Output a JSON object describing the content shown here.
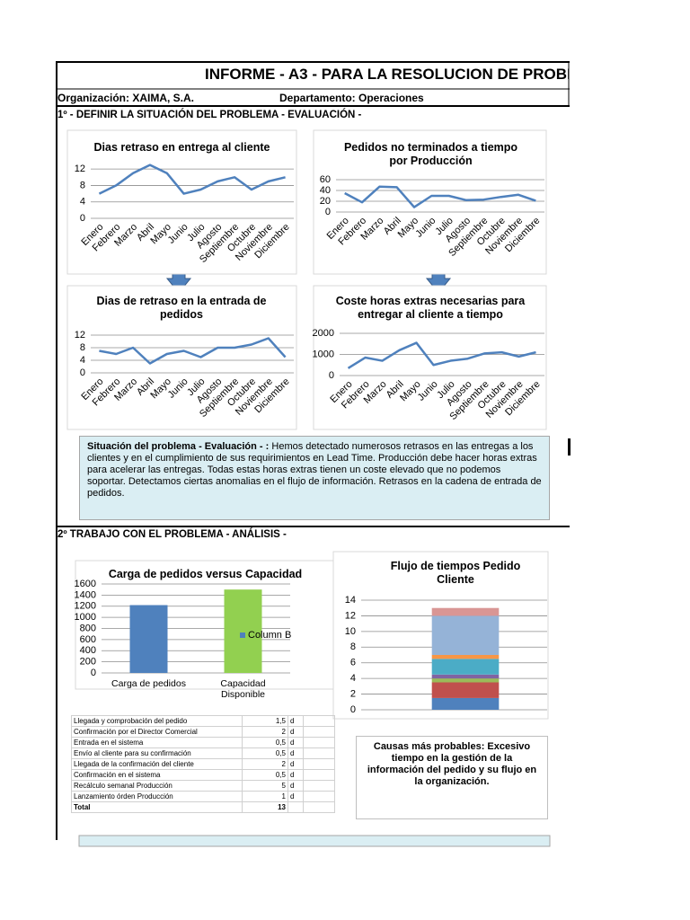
{
  "header": {
    "title": "INFORME - A3 - PARA LA RESOLUCION DE PROBL",
    "organization": "Organización: XAIMA, S.A.",
    "department": "Departamento: Operaciones"
  },
  "section_1": {
    "heading": "1º - DEFINIR LA SITUACIÓN DEL PROBLEMA - EVALUACIÓN -",
    "summary": {
      "label": "Situación del problema - Evaluación - :",
      "text": "Hemos detectado numerosos retrasos en las entregas a los clientes y en el cumplimiento de sus requirimientos en Lead Time. Producción debe hacer horas extras para acelerar las entregas. Todas estas horas extras tienen un coste elevado que no podemos soportar. Detectamos ciertas anomalias en el flujo de información. Retrasos en la cadena de entrada de pedidos."
    }
  },
  "section_2": {
    "heading": "2º TRABAJO CON EL PROBLEMA - ANÁLISIS -",
    "table": {
      "rows": [
        [
          "Llegada y comprobación del pedido",
          "1,5",
          "d"
        ],
        [
          "Confirmación por el Director Comercial",
          "2",
          "d"
        ],
        [
          "Entrada en el sistema",
          "0,5",
          "d"
        ],
        [
          "Envío al cliente para su confirmación",
          "0,5",
          "d"
        ],
        [
          "Llegada de la confirmación del cliente",
          "2",
          "d"
        ],
        [
          "Confirmación en el sistema",
          "0,5",
          "d"
        ],
        [
          "Recálculo semanal Producción",
          "5",
          "d"
        ],
        [
          "Lanzamiento órden Producción",
          "1",
          "d"
        ]
      ],
      "total": [
        "Total",
        "13"
      ]
    },
    "causes": "Causas más probables: Excesivo tiempo en la gestión de la información del pedido y su flujo en la organización."
  },
  "chart_data": [
    {
      "type": "line",
      "title": "Dias retraso en entrega al cliente",
      "categories": [
        "Enero",
        "Febrero",
        "Marzo",
        "Abril",
        "Mayo",
        "Junio",
        "Julio",
        "Agosto",
        "Septiembre",
        "Octubre",
        "Noviembre",
        "Diciembre"
      ],
      "values": [
        6,
        8,
        11,
        13,
        11,
        6,
        7,
        9,
        10,
        7,
        9,
        10
      ],
      "color": "#4f81bd",
      "ylim": [
        0,
        14
      ],
      "yticks": [
        0,
        4,
        8,
        12
      ],
      "grid": true
    },
    {
      "type": "line",
      "title": "Pedidos no terminados a tiempo por Producción",
      "categories": [
        "Enero",
        "Febrero",
        "Marzo",
        "Abril",
        "Mayo",
        "Junio",
        "Julio",
        "Agosto",
        "Septiembre",
        "Octubre",
        "Noviembre",
        "Diciembre"
      ],
      "values": [
        35,
        18,
        47,
        46,
        9,
        30,
        30,
        22,
        23,
        28,
        32,
        21
      ],
      "color": "#4f81bd",
      "ylim": [
        0,
        60
      ],
      "yticks": [
        0,
        20,
        40,
        60
      ],
      "grid": true
    },
    {
      "type": "line",
      "title": "Dias de retraso en la entrada de pedidos",
      "categories": [
        "Enero",
        "Febrero",
        "Marzo",
        "Abril",
        "Mayo",
        "Junio",
        "Julio",
        "Agosto",
        "Septiembre",
        "Octubre",
        "Noviembre",
        "Diciembre"
      ],
      "values": [
        7,
        6,
        8,
        3,
        6,
        7,
        5,
        8,
        8,
        9,
        11,
        5
      ],
      "color": "#4f81bd",
      "ylim": [
        0,
        12
      ],
      "yticks": [
        0,
        4,
        8,
        12
      ],
      "grid": true
    },
    {
      "type": "line",
      "title": "Coste horas extras necesarias para entregar al cliente a tiempo",
      "categories": [
        "Enero",
        "Febrero",
        "Marzo",
        "Abril",
        "Mayo",
        "Junio",
        "Julio",
        "Agosto",
        "Septiembre",
        "Octubre",
        "Noviembre",
        "Diciembre"
      ],
      "values": [
        350,
        850,
        700,
        1200,
        1550,
        500,
        700,
        800,
        1050,
        1100,
        900,
        1100
      ],
      "color": "#4f81bd",
      "ylim": [
        0,
        2000
      ],
      "yticks": [
        0,
        1000,
        2000
      ],
      "grid": true
    },
    {
      "type": "bar",
      "title": "Carga de pedidos versus Capacidad",
      "categories": [
        "Carga de pedidos",
        "Capacidad Disponible"
      ],
      "series": [
        {
          "name": "Column B",
          "color": "#4f81bd",
          "colors": [
            "#4f81bd",
            "#92d050"
          ],
          "values": [
            1220,
            1500
          ]
        }
      ],
      "ylim": [
        0,
        1600
      ],
      "yticks": [
        0,
        200,
        400,
        600,
        800,
        1000,
        1200,
        1400,
        1600
      ],
      "grid": true,
      "legend": "right"
    },
    {
      "type": "bar",
      "stacked": true,
      "title": "Flujo de tiempos Pedido Cliente",
      "categories": [
        null
      ],
      "series": [
        {
          "color": "#4f81bd",
          "values": [
            1.5
          ]
        },
        {
          "color": "#c0504d",
          "values": [
            2
          ]
        },
        {
          "color": "#9bbb59",
          "values": [
            0.5
          ]
        },
        {
          "color": "#8064a2",
          "values": [
            0.5
          ]
        },
        {
          "color": "#4bacc6",
          "values": [
            2
          ]
        },
        {
          "color": "#f79646",
          "values": [
            0.5
          ]
        },
        {
          "color": "#95b3d7",
          "values": [
            5
          ]
        },
        {
          "color": "#d99694",
          "values": [
            1
          ]
        }
      ],
      "ylim": [
        0,
        14
      ],
      "yticks": [
        0,
        2,
        4,
        6,
        8,
        10,
        12,
        14
      ],
      "grid": true
    }
  ]
}
